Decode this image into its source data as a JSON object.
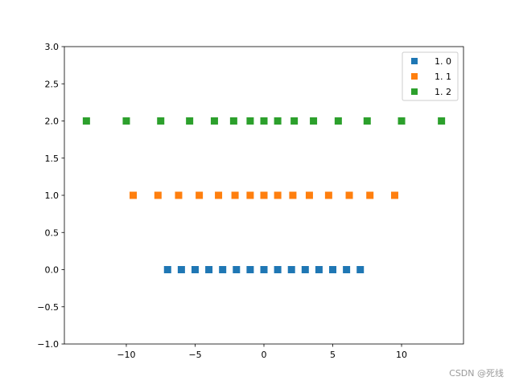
{
  "chart_data": {
    "type": "scatter",
    "marker": "square",
    "xlim": [
      -14.5,
      14.5
    ],
    "ylim": [
      -1.0,
      3.0
    ],
    "x_ticks": [
      -10,
      -5,
      0,
      5,
      10
    ],
    "x_tick_labels": [
      "−10",
      "−5",
      "0",
      "5",
      "10"
    ],
    "y_ticks": [
      -1.0,
      -0.5,
      0.0,
      0.5,
      1.0,
      1.5,
      2.0,
      2.5,
      3.0
    ],
    "y_tick_labels": [
      "−1.0",
      "−0.5",
      "0.0",
      "0.5",
      "1.0",
      "1.5",
      "2.0",
      "2.5",
      "3.0"
    ],
    "grid": false,
    "legend_position": "top-right",
    "series": [
      {
        "name": "1. 0",
        "color": "#1f77b4",
        "y": 0.0,
        "x": [
          -7,
          -6,
          -5,
          -4,
          -3,
          -2,
          -1,
          0,
          1,
          2,
          3,
          4,
          5,
          6,
          7
        ]
      },
      {
        "name": "1. 1",
        "color": "#ff7f0e",
        "y": 1.0,
        "x": [
          -9.5,
          -7.7,
          -6.2,
          -4.7,
          -3.3,
          -2.1,
          -1.0,
          0,
          1.0,
          2.1,
          3.3,
          4.7,
          6.2,
          7.7,
          9.5
        ]
      },
      {
        "name": "1. 2",
        "color": "#2ca02c",
        "y": 2.0,
        "x": [
          -12.9,
          -10.0,
          -7.5,
          -5.4,
          -3.6,
          -2.2,
          -1.0,
          0,
          1.0,
          2.2,
          3.6,
          5.4,
          7.5,
          10.0,
          12.9
        ]
      }
    ]
  },
  "watermark": "CSDN @死线"
}
